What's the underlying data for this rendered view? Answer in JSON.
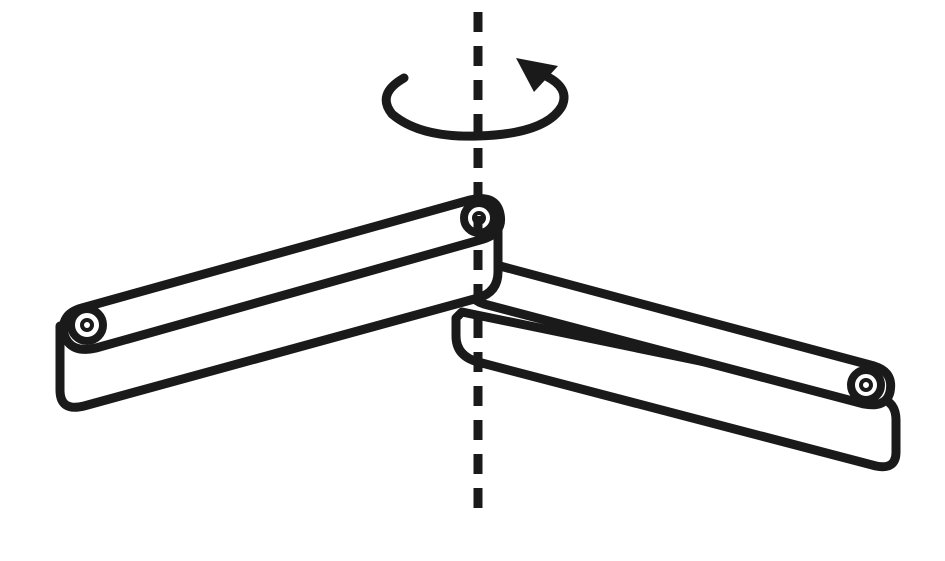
{
  "diagram": {
    "description_visible_text": "",
    "colors": {
      "stroke": "#1a1a1a",
      "fill": "#ffffff",
      "background": "#ffffff"
    },
    "icons": {
      "rotation": "rotation-arrow-icon",
      "axis": "dashed-axis-line"
    },
    "parts": [
      {
        "name": "left-arm",
        "kind": "link"
      },
      {
        "name": "right-arm",
        "kind": "link"
      }
    ]
  }
}
